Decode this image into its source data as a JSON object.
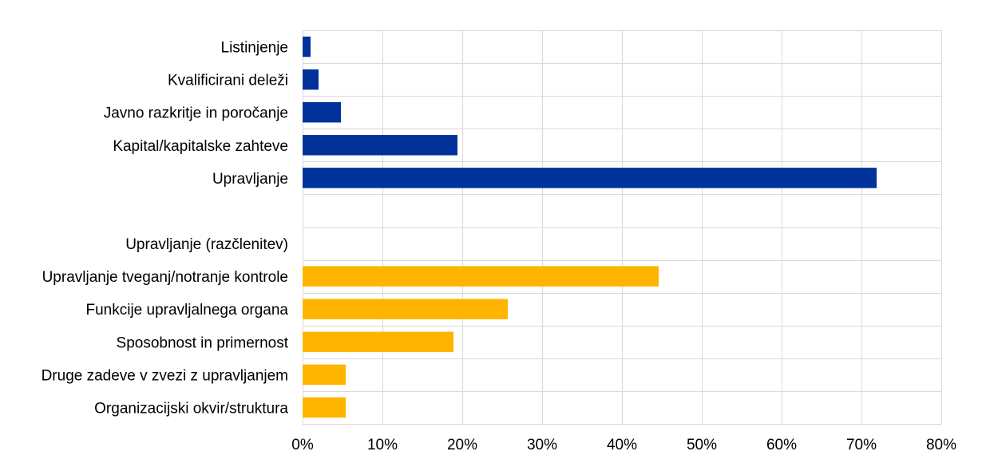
{
  "chart_data": {
    "type": "bar",
    "orientation": "horizontal",
    "title": "",
    "xlabel": "",
    "ylabel": "",
    "xlim": [
      0,
      80
    ],
    "x_ticks": [
      "0%",
      "10%",
      "20%",
      "30%",
      "40%",
      "50%",
      "60%",
      "70%",
      "80%"
    ],
    "grid": true,
    "legend": "none",
    "categories": [
      "Listinjenje",
      "Kvalificirani deleži",
      "Javno razkritje in poročanje",
      "Kapital/kapitalske zahteve",
      "Upravljanje",
      "",
      "Upravljanje (razčlenitev)",
      "Upravljanje tveganj/notranje kontrole",
      "Funkcije upravljalnega organa",
      "Sposobnost in primernost",
      "Druge zadeve v zvezi z upravljanjem",
      "Organizacijski okvir/struktura"
    ],
    "values": [
      1.0,
      2.0,
      4.8,
      19.4,
      71.9,
      null,
      null,
      44.6,
      25.7,
      18.9,
      5.4,
      5.4
    ],
    "bar_colors": [
      "#003299",
      "#003299",
      "#003299",
      "#003299",
      "#003299",
      null,
      null,
      "#FFB400",
      "#FFB400",
      "#FFB400",
      "#FFB400",
      "#FFB400"
    ]
  }
}
